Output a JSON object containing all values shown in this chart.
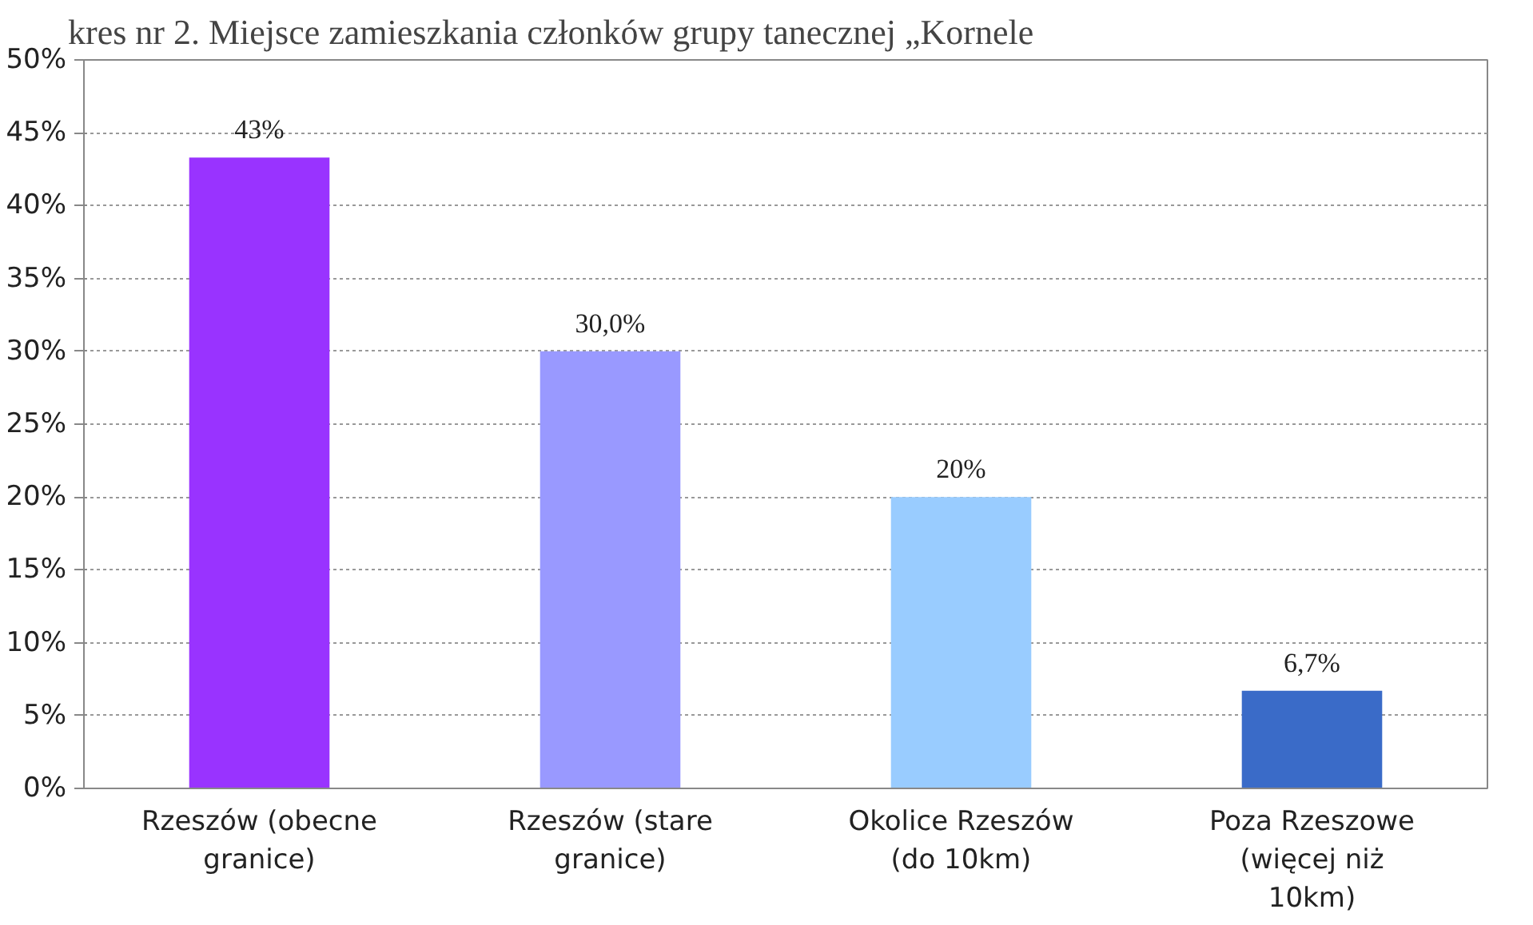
{
  "chart_data": {
    "type": "bar",
    "title": "kres nr 2. Miejsce zamieszkania członków grupy tanecznej „Kornele",
    "categories": [
      "Rzeszów (obecne granice)",
      "Rzeszów (stare granice)",
      "Okolice Rzeszów (do 10km)",
      "Poza Rzeszowe (więcej niż 10km)"
    ],
    "values": [
      43.3,
      30.0,
      20.0,
      6.7
    ],
    "value_labels": [
      "43%",
      "30,0%",
      "20%",
      "6,7%"
    ],
    "colors": [
      "#9933ff",
      "#9999ff",
      "#99ccff",
      "#3a6bc8"
    ],
    "ylim": [
      0,
      50
    ],
    "yticks": [
      {
        "value": 0,
        "label": "0%"
      },
      {
        "value": 5,
        "label": "5%"
      },
      {
        "value": 10,
        "label": "10%"
      },
      {
        "value": 15,
        "label": "15%"
      },
      {
        "value": 20,
        "label": "20%"
      },
      {
        "value": 25,
        "label": "25%"
      },
      {
        "value": 30,
        "label": "30%"
      },
      {
        "value": 35,
        "label": "35%"
      },
      {
        "value": 40,
        "label": "40%"
      },
      {
        "value": 45,
        "label": "45%"
      },
      {
        "value": 50,
        "label": "50%"
      }
    ],
    "grid": "y"
  }
}
